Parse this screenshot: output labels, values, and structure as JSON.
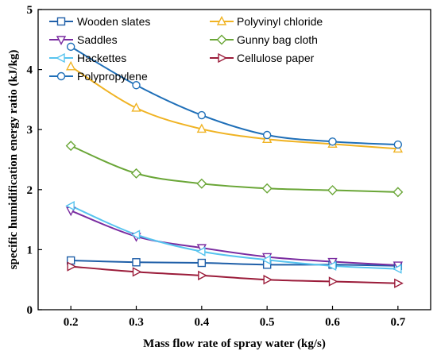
{
  "chart_data": {
    "type": "line",
    "title": "",
    "xlabel": "Mass flow rate of spray water (kg/s)",
    "ylabel": "specific humidification energy ratio (kJ/kg)",
    "xlim": [
      0.15,
      0.75
    ],
    "ylim": [
      0,
      5
    ],
    "x": [
      0.2,
      0.3,
      0.4,
      0.5,
      0.6,
      0.7
    ],
    "xticks": [
      "0.2",
      "0.3",
      "0.4",
      "0.5",
      "0.6",
      "0.7"
    ],
    "yticks": [
      "0",
      "1",
      "2",
      "3",
      "4",
      "5"
    ],
    "grid": false,
    "legend_position": "top-right",
    "series": [
      {
        "name": "Wooden slates",
        "marker": "square",
        "color": "#1f5fa8",
        "values": [
          0.82,
          0.79,
          0.78,
          0.75,
          0.75,
          0.73
        ]
      },
      {
        "name": "Polyvinyl chloride",
        "marker": "triangle-up",
        "color": "#f0b323",
        "values": [
          4.05,
          3.36,
          3.01,
          2.84,
          2.76,
          2.68
        ]
      },
      {
        "name": "Saddles",
        "marker": "triangle-down",
        "color": "#7a2ca0",
        "values": [
          1.65,
          1.22,
          1.03,
          0.88,
          0.8,
          0.74
        ]
      },
      {
        "name": "Gunny bag cloth",
        "marker": "diamond",
        "color": "#6aa637",
        "values": [
          2.73,
          2.27,
          2.1,
          2.02,
          1.99,
          1.96
        ]
      },
      {
        "name": "Hackettes",
        "marker": "triangle-left",
        "color": "#57c4ef",
        "values": [
          1.73,
          1.25,
          0.97,
          0.83,
          0.73,
          0.68
        ]
      },
      {
        "name": "Cellulose paper",
        "marker": "triangle-right",
        "color": "#9b1c3a",
        "values": [
          0.72,
          0.63,
          0.57,
          0.5,
          0.47,
          0.44
        ]
      },
      {
        "name": "Polypropylene",
        "marker": "circle",
        "color": "#1f6fb8",
        "values": [
          4.38,
          3.74,
          3.24,
          2.91,
          2.8,
          2.75
        ]
      }
    ]
  }
}
